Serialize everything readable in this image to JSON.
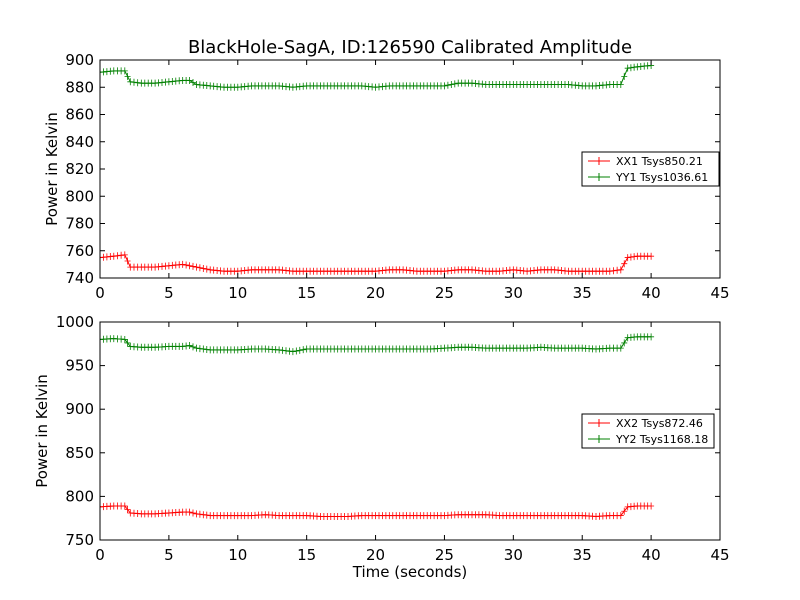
{
  "title": "BlackHole-SagA, ID:126590 Calibrated Amplitude",
  "chart_data": [
    {
      "type": "line",
      "title": "BlackHole-SagA, ID:126590 Calibrated Amplitude",
      "xlabel": "",
      "ylabel": "Power in Kelvin",
      "xlim": [
        0,
        45
      ],
      "ylim": [
        740,
        900
      ],
      "xticks": [
        "0",
        "5",
        "10",
        "15",
        "20",
        "25",
        "30",
        "35",
        "40",
        "45"
      ],
      "yticks": [
        "740",
        "760",
        "780",
        "800",
        "820",
        "840",
        "860",
        "880",
        "900"
      ],
      "legend_position": "right",
      "marker": "+",
      "series": [
        {
          "name": "XX1 Tsys850.21",
          "color": "#ff0000",
          "points": [
            [
              0,
              755
            ],
            [
              1,
              756
            ],
            [
              1.8,
              757
            ],
            [
              2.2,
              748
            ],
            [
              3,
              748
            ],
            [
              4,
              748
            ],
            [
              5,
              749
            ],
            [
              6,
              750
            ],
            [
              7,
              748
            ],
            [
              8,
              746
            ],
            [
              9,
              745
            ],
            [
              10,
              745
            ],
            [
              11,
              746
            ],
            [
              12,
              746
            ],
            [
              13,
              746
            ],
            [
              14,
              745
            ],
            [
              15,
              745
            ],
            [
              16,
              745
            ],
            [
              17,
              745
            ],
            [
              18,
              745
            ],
            [
              19,
              745
            ],
            [
              20,
              745
            ],
            [
              21,
              746
            ],
            [
              22,
              746
            ],
            [
              23,
              745
            ],
            [
              24,
              745
            ],
            [
              25,
              745
            ],
            [
              26,
              746
            ],
            [
              27,
              746
            ],
            [
              28,
              745
            ],
            [
              29,
              745
            ],
            [
              30,
              746
            ],
            [
              31,
              745
            ],
            [
              32,
              746
            ],
            [
              33,
              746
            ],
            [
              34,
              745
            ],
            [
              35,
              745
            ],
            [
              36,
              745
            ],
            [
              37,
              745
            ],
            [
              37.8,
              746
            ],
            [
              38.3,
              755
            ],
            [
              39,
              756
            ],
            [
              40,
              756
            ]
          ]
        },
        {
          "name": "YY1 Tsys1036.61",
          "color": "#008000",
          "points": [
            [
              0,
              891
            ],
            [
              1,
              892
            ],
            [
              1.8,
              892
            ],
            [
              2.2,
              884
            ],
            [
              3,
              883
            ],
            [
              4,
              883
            ],
            [
              5,
              884
            ],
            [
              6,
              885
            ],
            [
              6.5,
              885
            ],
            [
              7,
              882
            ],
            [
              8,
              881
            ],
            [
              9,
              880
            ],
            [
              10,
              880
            ],
            [
              11,
              881
            ],
            [
              12,
              881
            ],
            [
              13,
              881
            ],
            [
              14,
              880
            ],
            [
              15,
              881
            ],
            [
              16,
              881
            ],
            [
              17,
              881
            ],
            [
              18,
              881
            ],
            [
              19,
              881
            ],
            [
              20,
              880
            ],
            [
              21,
              881
            ],
            [
              22,
              881
            ],
            [
              23,
              881
            ],
            [
              24,
              881
            ],
            [
              25,
              881
            ],
            [
              26,
              883
            ],
            [
              27,
              883
            ],
            [
              28,
              882
            ],
            [
              29,
              882
            ],
            [
              30,
              882
            ],
            [
              31,
              882
            ],
            [
              32,
              882
            ],
            [
              33,
              882
            ],
            [
              34,
              882
            ],
            [
              35,
              881
            ],
            [
              36,
              881
            ],
            [
              37,
              882
            ],
            [
              37.8,
              882
            ],
            [
              38.3,
              894
            ],
            [
              39,
              895
            ],
            [
              40,
              896
            ]
          ]
        }
      ]
    },
    {
      "type": "line",
      "title": "",
      "xlabel": "Time (seconds)",
      "ylabel": "Power in Kelvin",
      "xlim": [
        0,
        45
      ],
      "ylim": [
        750,
        1000
      ],
      "xticks": [
        "0",
        "5",
        "10",
        "15",
        "20",
        "25",
        "30",
        "35",
        "40",
        "45"
      ],
      "yticks": [
        "750",
        "800",
        "850",
        "900",
        "950",
        "1000"
      ],
      "legend_position": "right",
      "marker": "+",
      "series": [
        {
          "name": "XX2 Tsys872.46",
          "color": "#ff0000",
          "points": [
            [
              0,
              788
            ],
            [
              1,
              789
            ],
            [
              1.8,
              789
            ],
            [
              2.2,
              781
            ],
            [
              3,
              780
            ],
            [
              4,
              780
            ],
            [
              5,
              781
            ],
            [
              6,
              782
            ],
            [
              6.5,
              782
            ],
            [
              7,
              780
            ],
            [
              8,
              778
            ],
            [
              9,
              778
            ],
            [
              10,
              778
            ],
            [
              11,
              778
            ],
            [
              12,
              779
            ],
            [
              13,
              778
            ],
            [
              14,
              778
            ],
            [
              15,
              778
            ],
            [
              16,
              777
            ],
            [
              17,
              777
            ],
            [
              18,
              777
            ],
            [
              19,
              778
            ],
            [
              20,
              778
            ],
            [
              21,
              778
            ],
            [
              22,
              778
            ],
            [
              23,
              778
            ],
            [
              24,
              778
            ],
            [
              25,
              778
            ],
            [
              26,
              779
            ],
            [
              27,
              779
            ],
            [
              28,
              779
            ],
            [
              29,
              778
            ],
            [
              30,
              778
            ],
            [
              31,
              778
            ],
            [
              32,
              778
            ],
            [
              33,
              778
            ],
            [
              34,
              778
            ],
            [
              35,
              778
            ],
            [
              36,
              777
            ],
            [
              37,
              778
            ],
            [
              37.8,
              778
            ],
            [
              38.3,
              788
            ],
            [
              39,
              789
            ],
            [
              40,
              789
            ]
          ]
        },
        {
          "name": "YY2 Tsys1168.18",
          "color": "#008000",
          "points": [
            [
              0,
              980
            ],
            [
              1,
              981
            ],
            [
              1.8,
              980
            ],
            [
              2.2,
              972
            ],
            [
              3,
              971
            ],
            [
              4,
              971
            ],
            [
              5,
              972
            ],
            [
              6,
              972
            ],
            [
              6.5,
              973
            ],
            [
              7,
              970
            ],
            [
              8,
              968
            ],
            [
              9,
              968
            ],
            [
              10,
              968
            ],
            [
              11,
              969
            ],
            [
              12,
              969
            ],
            [
              13,
              968
            ],
            [
              14,
              966
            ],
            [
              15,
              969
            ],
            [
              16,
              969
            ],
            [
              17,
              969
            ],
            [
              18,
              969
            ],
            [
              19,
              969
            ],
            [
              20,
              969
            ],
            [
              21,
              969
            ],
            [
              22,
              969
            ],
            [
              23,
              969
            ],
            [
              24,
              969
            ],
            [
              25,
              970
            ],
            [
              26,
              971
            ],
            [
              27,
              971
            ],
            [
              28,
              970
            ],
            [
              29,
              970
            ],
            [
              30,
              970
            ],
            [
              31,
              970
            ],
            [
              32,
              971
            ],
            [
              33,
              970
            ],
            [
              34,
              970
            ],
            [
              35,
              970
            ],
            [
              36,
              969
            ],
            [
              37,
              970
            ],
            [
              37.8,
              970
            ],
            [
              38.3,
              982
            ],
            [
              39,
              983
            ],
            [
              40,
              983
            ]
          ]
        }
      ]
    }
  ]
}
